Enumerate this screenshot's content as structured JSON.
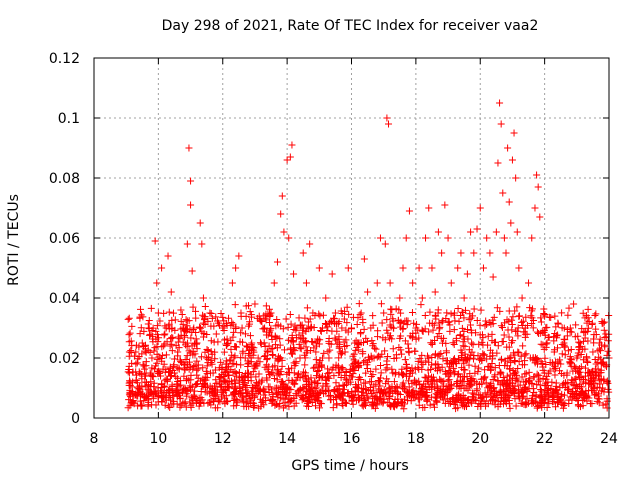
{
  "chart_data": {
    "type": "scatter",
    "title": "Day 298 of 2021, Rate Of TEC Index for receiver vaa2",
    "xlabel": "GPS time / hours",
    "ylabel": "ROTI / TECUs",
    "xlim": [
      8,
      24
    ],
    "ylim": [
      0,
      0.12
    ],
    "xticks": [
      8,
      10,
      12,
      14,
      16,
      18,
      20,
      22,
      24
    ],
    "xtick_labels": [
      "8",
      "10",
      "12",
      "14",
      "16",
      "18",
      "20",
      "22",
      "24"
    ],
    "yticks": [
      0,
      0.02,
      0.04,
      0.06,
      0.08,
      0.1,
      0.12
    ],
    "ytick_labels": [
      "0",
      "0.02",
      "0.04",
      "0.06",
      "0.08",
      "0.1",
      "0.12"
    ],
    "grid": true,
    "marker": "+",
    "color": "#ff0000",
    "series": [
      {
        "name": "ROTI",
        "points": [
          [
            9.1,
            0.008
          ],
          [
            9.1,
            0.015
          ],
          [
            9.1,
            0.022
          ],
          [
            9.15,
            0.005
          ],
          [
            9.2,
            0.012
          ],
          [
            9.3,
            0.018
          ],
          [
            9.4,
            0.01
          ],
          [
            9.5,
            0.025
          ],
          [
            9.6,
            0.014
          ],
          [
            9.7,
            0.03
          ],
          [
            9.8,
            0.02
          ],
          [
            9.9,
            0.059
          ],
          [
            9.95,
            0.045
          ],
          [
            10.0,
            0.035
          ],
          [
            10.1,
            0.05
          ],
          [
            10.2,
            0.028
          ],
          [
            10.3,
            0.054
          ],
          [
            10.4,
            0.042
          ],
          [
            10.5,
            0.015
          ],
          [
            10.6,
            0.022
          ],
          [
            10.7,
            0.036
          ],
          [
            10.8,
            0.018
          ],
          [
            10.9,
            0.058
          ],
          [
            10.95,
            0.09
          ],
          [
            11.0,
            0.079
          ],
          [
            11.0,
            0.071
          ],
          [
            11.05,
            0.049
          ],
          [
            11.1,
            0.03
          ],
          [
            11.2,
            0.025
          ],
          [
            11.3,
            0.065
          ],
          [
            11.35,
            0.058
          ],
          [
            11.4,
            0.04
          ],
          [
            11.5,
            0.02
          ],
          [
            11.6,
            0.035
          ],
          [
            11.7,
            0.015
          ],
          [
            11.8,
            0.028
          ],
          [
            11.9,
            0.012
          ],
          [
            12.0,
            0.03
          ],
          [
            12.1,
            0.018
          ],
          [
            12.2,
            0.01
          ],
          [
            12.3,
            0.045
          ],
          [
            12.4,
            0.05
          ],
          [
            12.5,
            0.054
          ],
          [
            12.6,
            0.03
          ],
          [
            12.7,
            0.02
          ],
          [
            12.8,
            0.015
          ],
          [
            12.9,
            0.025
          ],
          [
            13.0,
            0.038
          ],
          [
            13.1,
            0.02
          ],
          [
            13.2,
            0.012
          ],
          [
            13.3,
            0.03
          ],
          [
            13.4,
            0.022
          ],
          [
            13.5,
            0.035
          ],
          [
            13.6,
            0.045
          ],
          [
            13.7,
            0.052
          ],
          [
            13.8,
            0.068
          ],
          [
            13.85,
            0.074
          ],
          [
            13.9,
            0.062
          ],
          [
            14.0,
            0.086
          ],
          [
            14.05,
            0.06
          ],
          [
            14.1,
            0.087
          ],
          [
            14.15,
            0.091
          ],
          [
            14.2,
            0.048
          ],
          [
            14.3,
            0.03
          ],
          [
            14.4,
            0.02
          ],
          [
            14.5,
            0.055
          ],
          [
            14.6,
            0.045
          ],
          [
            14.7,
            0.058
          ],
          [
            14.8,
            0.035
          ],
          [
            14.9,
            0.025
          ],
          [
            15.0,
            0.05
          ],
          [
            15.1,
            0.03
          ],
          [
            15.2,
            0.04
          ],
          [
            15.3,
            0.02
          ],
          [
            15.4,
            0.048
          ],
          [
            15.5,
            0.035
          ],
          [
            15.6,
            0.015
          ],
          [
            15.7,
            0.03
          ],
          [
            15.8,
            0.022
          ],
          [
            15.9,
            0.05
          ],
          [
            16.0,
            0.03
          ],
          [
            16.1,
            0.025
          ],
          [
            16.2,
            0.018
          ],
          [
            16.3,
            0.035
          ],
          [
            16.4,
            0.053
          ],
          [
            16.5,
            0.042
          ],
          [
            16.6,
            0.03
          ],
          [
            16.7,
            0.02
          ],
          [
            16.8,
            0.045
          ],
          [
            16.9,
            0.06
          ],
          [
            17.0,
            0.035
          ],
          [
            17.05,
            0.058
          ],
          [
            17.1,
            0.1
          ],
          [
            17.15,
            0.098
          ],
          [
            17.2,
            0.045
          ],
          [
            17.3,
            0.03
          ],
          [
            17.4,
            0.02
          ],
          [
            17.5,
            0.04
          ],
          [
            17.6,
            0.05
          ],
          [
            17.7,
            0.06
          ],
          [
            17.8,
            0.069
          ],
          [
            17.9,
            0.045
          ],
          [
            18.0,
            0.03
          ],
          [
            18.1,
            0.05
          ],
          [
            18.2,
            0.04
          ],
          [
            18.3,
            0.06
          ],
          [
            18.4,
            0.07
          ],
          [
            18.5,
            0.05
          ],
          [
            18.6,
            0.042
          ],
          [
            18.7,
            0.062
          ],
          [
            18.8,
            0.055
          ],
          [
            18.9,
            0.071
          ],
          [
            19.0,
            0.06
          ],
          [
            19.1,
            0.045
          ],
          [
            19.2,
            0.035
          ],
          [
            19.3,
            0.05
          ],
          [
            19.4,
            0.055
          ],
          [
            19.5,
            0.04
          ],
          [
            19.6,
            0.048
          ],
          [
            19.7,
            0.062
          ],
          [
            19.8,
            0.055
          ],
          [
            19.9,
            0.063
          ],
          [
            20.0,
            0.07
          ],
          [
            20.1,
            0.05
          ],
          [
            20.2,
            0.06
          ],
          [
            20.3,
            0.055
          ],
          [
            20.4,
            0.047
          ],
          [
            20.5,
            0.062
          ],
          [
            20.55,
            0.085
          ],
          [
            20.6,
            0.105
          ],
          [
            20.65,
            0.098
          ],
          [
            20.7,
            0.075
          ],
          [
            20.75,
            0.06
          ],
          [
            20.8,
            0.055
          ],
          [
            20.85,
            0.09
          ],
          [
            20.9,
            0.072
          ],
          [
            20.95,
            0.065
          ],
          [
            21.0,
            0.086
          ],
          [
            21.05,
            0.095
          ],
          [
            21.1,
            0.08
          ],
          [
            21.15,
            0.062
          ],
          [
            21.2,
            0.05
          ],
          [
            21.3,
            0.04
          ],
          [
            21.4,
            0.03
          ],
          [
            21.5,
            0.045
          ],
          [
            21.6,
            0.06
          ],
          [
            21.7,
            0.07
          ],
          [
            21.75,
            0.081
          ],
          [
            21.8,
            0.077
          ],
          [
            21.85,
            0.067
          ],
          [
            21.9,
            0.032
          ],
          [
            22.0,
            0.015
          ],
          [
            22.1,
            0.012
          ],
          [
            22.2,
            0.008
          ],
          [
            22.3,
            0.022
          ],
          [
            22.4,
            0.005
          ],
          [
            22.5,
            0.018
          ],
          [
            22.6,
            0.025
          ],
          [
            22.7,
            0.015
          ],
          [
            22.8,
            0.03
          ],
          [
            22.9,
            0.038
          ],
          [
            23.0,
            0.02
          ],
          [
            23.1,
            0.025
          ],
          [
            23.2,
            0.012
          ],
          [
            23.3,
            0.02
          ],
          [
            23.4,
            0.015
          ],
          [
            23.5,
            0.022
          ],
          [
            23.6,
            0.018
          ],
          [
            23.7,
            0.025
          ],
          [
            23.8,
            0.01
          ],
          [
            23.9,
            0.028
          ],
          [
            24.0,
            0.02
          ]
        ],
        "background_band": {
          "x_range": [
            9.05,
            24.0
          ],
          "y_range": [
            0.003,
            0.033
          ]
        }
      }
    ]
  }
}
